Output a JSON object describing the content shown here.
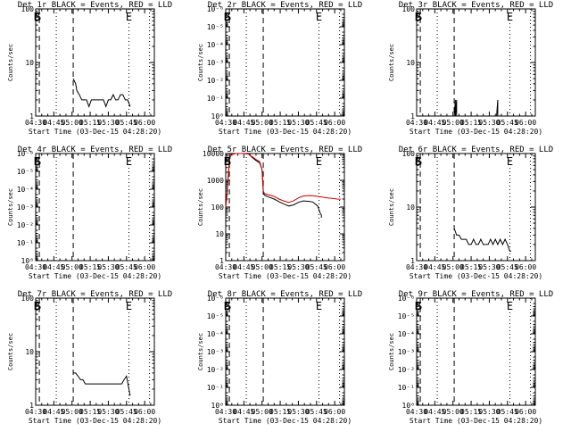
{
  "chart_data": [
    {
      "type": "line",
      "title": "Det 1r BLACK = Events, RED = LLD",
      "xlabel": "Start Time (03-Dec-15 04:28:20)",
      "ylabel": "Counts/sec",
      "xlim": [
        "04:30",
        "06:08"
      ],
      "ylim": [
        1,
        100
      ],
      "yscale": "log",
      "ytick_labels": [
        "1",
        "10",
        "100"
      ],
      "xtick_labels": [
        "04:30",
        "04:45",
        "05:00",
        "05:15",
        "05:30",
        "05:45",
        "06:00"
      ],
      "vlines_dashed": [
        "04:33",
        "05:01"
      ],
      "vlines_dotted": [
        "04:47",
        "05:47",
        "06:04"
      ],
      "markers": [
        {
          "text": "B",
          "x": "04:31"
        },
        {
          "text": "S",
          "x": "04:32"
        },
        {
          "text": "E",
          "x": "05:47"
        }
      ],
      "series": [
        {
          "color": "#000000",
          "x": [
            "05:01",
            "05:03",
            "05:04",
            "05:06",
            "05:08",
            "05:10",
            "05:12",
            "05:14",
            "05:16",
            "05:18",
            "05:20",
            "05:22",
            "05:24",
            "05:26",
            "05:28",
            "05:30",
            "05:32",
            "05:34",
            "05:36",
            "05:38",
            "05:40",
            "05:42",
            "05:44",
            "05:46",
            "05:48"
          ],
          "y": [
            5,
            4,
            3,
            2.5,
            2,
            2,
            2,
            1.5,
            2,
            2,
            2,
            2,
            2,
            2,
            1.5,
            2,
            2,
            2.5,
            2,
            2,
            2.5,
            2.5,
            2,
            2,
            1.5
          ]
        }
      ]
    },
    {
      "type": "line",
      "title": "Det 2r BLACK = Events, RED = LLD",
      "xlabel": "Start Time (03-Dec-15 04:28:20)",
      "ylabel": "Counts/sec",
      "xlim": [
        "04:30",
        "06:08"
      ],
      "ylim": [
        1,
        1e-06
      ],
      "yscale": "log",
      "ytick_labels": [
        "10⁰",
        "10⁻¹",
        "10⁻²",
        "10⁻³",
        "10⁻⁴",
        "10⁻⁵",
        "10⁻⁶"
      ],
      "xtick_labels": [
        "04:30",
        "04:45",
        "05:00",
        "05:15",
        "05:30",
        "05:45",
        "06:00"
      ],
      "vlines_dashed": [
        "04:33",
        "05:01"
      ],
      "vlines_dotted": [
        "04:47",
        "05:47",
        "06:04"
      ],
      "markers": [
        {
          "text": "B",
          "x": "04:31"
        },
        {
          "text": "S",
          "x": "04:32"
        },
        {
          "text": "E",
          "x": "05:47"
        }
      ],
      "series": []
    },
    {
      "type": "line",
      "title": "Det 3r BLACK = Events, RED = LLD",
      "xlabel": "Start Time (03-Dec-15 04:28:20)",
      "ylabel": "Counts/sec",
      "xlim": [
        "04:30",
        "06:08"
      ],
      "ylim": [
        1,
        100
      ],
      "yscale": "log",
      "ytick_labels": [
        "1",
        "10",
        "100"
      ],
      "xtick_labels": [
        "04:30",
        "04:45",
        "05:00",
        "05:15",
        "05:30",
        "05:45",
        "06:00"
      ],
      "vlines_dashed": [
        "04:33",
        "05:01"
      ],
      "vlines_dotted": [
        "04:47",
        "05:47",
        "06:04"
      ],
      "markers": [
        {
          "text": "B",
          "x": "04:31"
        },
        {
          "text": "S",
          "x": "04:32"
        },
        {
          "text": "E",
          "x": "05:47"
        }
      ],
      "series": [
        {
          "color": "#000000",
          "x": [
            "05:01",
            "05:02",
            "05:02",
            "05:03",
            "05:03",
            "05:04"
          ],
          "y": [
            1,
            2,
            1,
            2,
            1,
            1
          ]
        },
        {
          "color": "#000000",
          "x": [
            "05:36",
            "05:37",
            "05:37",
            "05:38"
          ],
          "y": [
            1,
            2,
            1,
            1
          ]
        }
      ]
    },
    {
      "type": "line",
      "title": "Det 4r BLACK = Events, RED = LLD",
      "xlabel": "Start Time (03-Dec-15 04:28:20)",
      "ylabel": "Counts/sec",
      "xlim": [
        "04:30",
        "06:08"
      ],
      "ylim": [
        1,
        1e-06
      ],
      "yscale": "log",
      "ytick_labels": [
        "10⁰",
        "10⁻¹",
        "10⁻²",
        "10⁻³",
        "10⁻⁴",
        "10⁻⁵",
        "10⁻⁶"
      ],
      "xtick_labels": [
        "04:30",
        "04:45",
        "05:00",
        "05:15",
        "05:30",
        "05:45",
        "06:00"
      ],
      "vlines_dashed": [
        "04:33",
        "05:01"
      ],
      "vlines_dotted": [
        "04:47",
        "05:47",
        "06:04"
      ],
      "markers": [
        {
          "text": "B",
          "x": "04:31"
        },
        {
          "text": "S",
          "x": "04:32"
        },
        {
          "text": "E",
          "x": "05:47"
        }
      ],
      "series": []
    },
    {
      "type": "line",
      "title": "Det 5r BLACK = Events, RED = LLD",
      "xlabel": "Start Time (03-Dec-15 04:28:20)",
      "ylabel": "Counts/sec",
      "xlim": [
        "04:30",
        "06:08"
      ],
      "ylim": [
        1,
        10000
      ],
      "yscale": "log",
      "ytick_labels": [
        "1",
        "10",
        "100",
        "1000",
        "10000"
      ],
      "xtick_labels": [
        "04:30",
        "04:45",
        "05:00",
        "05:15",
        "05:30",
        "05:45",
        "06:00"
      ],
      "vlines_dashed": [
        "04:33",
        "05:01"
      ],
      "vlines_dotted": [
        "04:47",
        "05:47",
        "06:04"
      ],
      "markers": [
        {
          "text": "B",
          "x": "04:31"
        },
        {
          "text": "S",
          "x": "04:32"
        },
        {
          "text": "E",
          "x": "05:47"
        }
      ],
      "series": [
        {
          "color": "#000000",
          "x": [
            "04:30",
            "04:31",
            "04:32",
            "04:33",
            "04:34",
            "04:38",
            "04:42",
            "04:46",
            "04:49",
            "04:52",
            "04:55",
            "04:58",
            "05:00",
            "05:01",
            "05:02",
            "05:05",
            "05:10",
            "05:14",
            "05:18",
            "05:22",
            "05:26",
            "05:30",
            "05:34",
            "05:38",
            "05:42",
            "05:44",
            "05:46",
            "05:47",
            "05:48",
            "05:49",
            "05:49"
          ],
          "y": [
            100,
            300,
            1200,
            5000,
            9000,
            10000,
            10000,
            10000,
            9500,
            7000,
            5500,
            4500,
            2500,
            350,
            280,
            240,
            200,
            160,
            130,
            110,
            120,
            150,
            170,
            165,
            155,
            130,
            110,
            80,
            60,
            50,
            40
          ]
        },
        {
          "color": "#cc0000",
          "x": [
            "04:30",
            "04:31",
            "04:32",
            "04:33",
            "04:34",
            "04:38",
            "04:42",
            "04:46",
            "04:49",
            "04:52",
            "04:55",
            "04:58",
            "05:00",
            "05:01",
            "05:02",
            "05:05",
            "05:10",
            "05:14",
            "05:18",
            "05:22",
            "05:26",
            "05:30",
            "05:34",
            "05:38",
            "05:42",
            "05:46",
            "05:50",
            "05:54",
            "05:58",
            "06:02",
            "06:05"
          ],
          "y": [
            100,
            300,
            1200,
            5000,
            9000,
            10000,
            10000,
            10000,
            9500,
            7500,
            6000,
            5000,
            2500,
            400,
            320,
            290,
            250,
            200,
            170,
            150,
            170,
            220,
            260,
            270,
            265,
            250,
            235,
            220,
            210,
            200,
            195
          ]
        }
      ]
    },
    {
      "type": "line",
      "title": "Det 6r BLACK = Events, RED = LLD",
      "xlabel": "Start Time (03-Dec-15 04:28:20)",
      "ylabel": "Counts/sec",
      "xlim": [
        "04:30",
        "06:08"
      ],
      "ylim": [
        1,
        100
      ],
      "yscale": "log",
      "ytick_labels": [
        "1",
        "10",
        "100"
      ],
      "xtick_labels": [
        "04:30",
        "04:45",
        "05:00",
        "05:15",
        "05:30",
        "05:45",
        "06:00"
      ],
      "vlines_dashed": [
        "04:33",
        "05:01"
      ],
      "vlines_dotted": [
        "04:47",
        "05:47",
        "06:04"
      ],
      "markers": [
        {
          "text": "B",
          "x": "04:31"
        },
        {
          "text": "S",
          "x": "04:32"
        },
        {
          "text": "E",
          "x": "05:47"
        }
      ],
      "series": [
        {
          "color": "#000000",
          "x": [
            "05:01",
            "05:03",
            "05:05",
            "05:07",
            "05:09",
            "05:11",
            "05:13",
            "05:15",
            "05:17",
            "05:19",
            "05:21",
            "05:23",
            "05:25",
            "05:27",
            "05:29",
            "05:31",
            "05:33",
            "05:35",
            "05:37",
            "05:39",
            "05:41",
            "05:43",
            "05:45",
            "05:47",
            "05:48"
          ],
          "y": [
            4,
            3,
            3,
            2.5,
            2.5,
            2.5,
            2,
            2,
            2.5,
            2,
            2,
            2.5,
            2,
            2,
            2,
            2.5,
            2,
            2.5,
            2,
            2.5,
            2,
            2.5,
            2,
            1.5,
            1.5
          ]
        }
      ]
    },
    {
      "type": "line",
      "title": "Det 7r BLACK = Events, RED = LLD",
      "xlabel": "Start Time (03-Dec-15 04:28:20)",
      "ylabel": "Counts/sec",
      "xlim": [
        "04:30",
        "06:08"
      ],
      "ylim": [
        1,
        100
      ],
      "yscale": "log",
      "ytick_labels": [
        "1",
        "10",
        "100"
      ],
      "xtick_labels": [
        "04:30",
        "04:45",
        "05:00",
        "05:15",
        "05:30",
        "05:45",
        "06:00"
      ],
      "vlines_dashed": [
        "04:33",
        "05:01"
      ],
      "vlines_dotted": [
        "04:47",
        "05:47",
        "06:04"
      ],
      "markers": [
        {
          "text": "B",
          "x": "04:31"
        },
        {
          "text": "S",
          "x": "04:32"
        },
        {
          "text": "E",
          "x": "05:47"
        }
      ],
      "series": [
        {
          "color": "#000000",
          "x": [
            "05:01",
            "05:03",
            "05:05",
            "05:07",
            "05:09",
            "05:11",
            "05:13",
            "05:15",
            "05:17",
            "05:19",
            "05:21",
            "05:23",
            "05:25",
            "05:27",
            "05:29",
            "05:31",
            "05:33",
            "05:35",
            "05:37",
            "05:39",
            "05:41",
            "05:43",
            "05:45",
            "05:47",
            "05:48"
          ],
          "y": [
            4,
            4,
            3.5,
            3,
            3,
            2.5,
            2.5,
            2.5,
            2.5,
            2.5,
            2.5,
            2.5,
            2.5,
            2.5,
            2.5,
            2.5,
            2.5,
            2.5,
            2.5,
            2.5,
            2.5,
            3,
            3.5,
            2,
            1.5
          ]
        }
      ]
    },
    {
      "type": "line",
      "title": "Det 8r BLACK = Events, RED = LLD",
      "xlabel": "Start Time (03-Dec-15 04:28:20)",
      "ylabel": "Counts/sec",
      "xlim": [
        "04:30",
        "06:08"
      ],
      "ylim": [
        1,
        1e-06
      ],
      "yscale": "log",
      "ytick_labels": [
        "10⁰",
        "10⁻¹",
        "10⁻²",
        "10⁻³",
        "10⁻⁴",
        "10⁻⁵",
        "10⁻⁶"
      ],
      "xtick_labels": [
        "04:30",
        "04:45",
        "05:00",
        "05:15",
        "05:30",
        "05:45",
        "06:00"
      ],
      "vlines_dashed": [
        "04:33",
        "05:01"
      ],
      "vlines_dotted": [
        "04:47",
        "05:47",
        "06:04"
      ],
      "markers": [
        {
          "text": "B",
          "x": "04:31"
        },
        {
          "text": "S",
          "x": "04:32"
        },
        {
          "text": "E",
          "x": "05:47"
        }
      ],
      "series": []
    },
    {
      "type": "line",
      "title": "Det 9r BLACK = Events, RED = LLD",
      "xlabel": "Start Time (03-Dec-15 04:28:20)",
      "ylabel": "Counts/sec",
      "xlim": [
        "04:30",
        "06:08"
      ],
      "ylim": [
        1,
        1e-06
      ],
      "yscale": "log",
      "ytick_labels": [
        "10⁰",
        "10⁻¹",
        "10⁻²",
        "10⁻³",
        "10⁻⁴",
        "10⁻⁵",
        "10⁻⁶"
      ],
      "xtick_labels": [
        "04:30",
        "04:45",
        "05:00",
        "05:15",
        "05:30",
        "05:45",
        "06:00"
      ],
      "vlines_dashed": [
        "04:33",
        "05:01"
      ],
      "vlines_dotted": [
        "04:47",
        "05:47",
        "06:04"
      ],
      "markers": [
        {
          "text": "B",
          "x": "04:31"
        },
        {
          "text": "S",
          "x": "04:32"
        },
        {
          "text": "E",
          "x": "05:47"
        }
      ],
      "series": []
    }
  ]
}
